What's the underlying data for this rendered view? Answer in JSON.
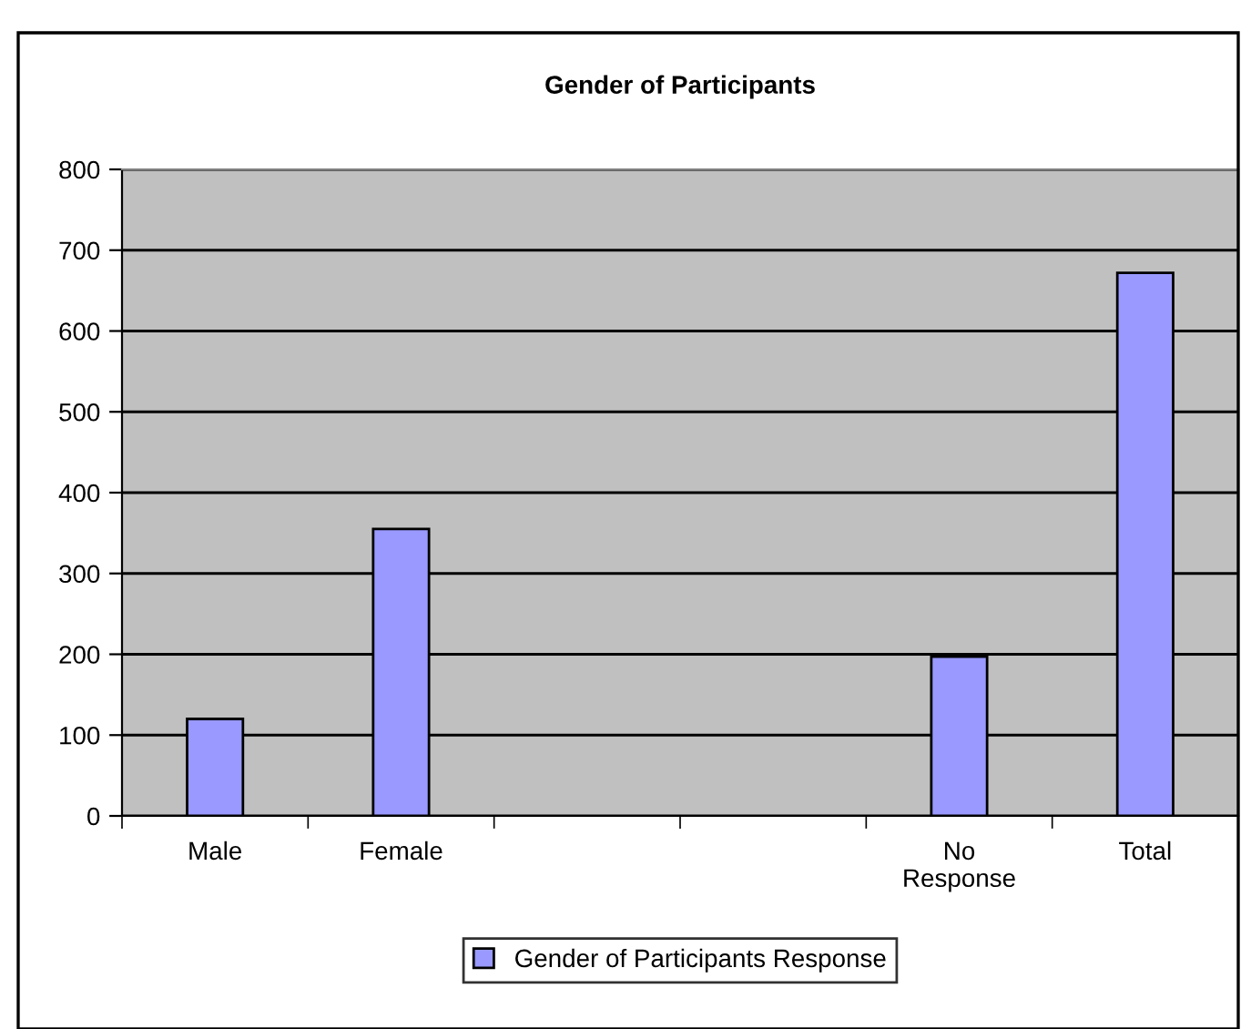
{
  "chart_data": {
    "type": "bar",
    "title": "Gender of Participants",
    "categories": [
      "Male",
      "Female",
      null,
      null,
      "No Response",
      "Total"
    ],
    "series": [
      {
        "name": "Gender of Participants Response",
        "color": "#9999ff",
        "values": [
          120,
          355,
          null,
          null,
          197,
          672
        ]
      }
    ],
    "ylim": [
      0,
      800
    ],
    "yticks": [
      0,
      100,
      200,
      300,
      400,
      500,
      600,
      700,
      800
    ],
    "grid": "y",
    "legend": "bottom"
  }
}
